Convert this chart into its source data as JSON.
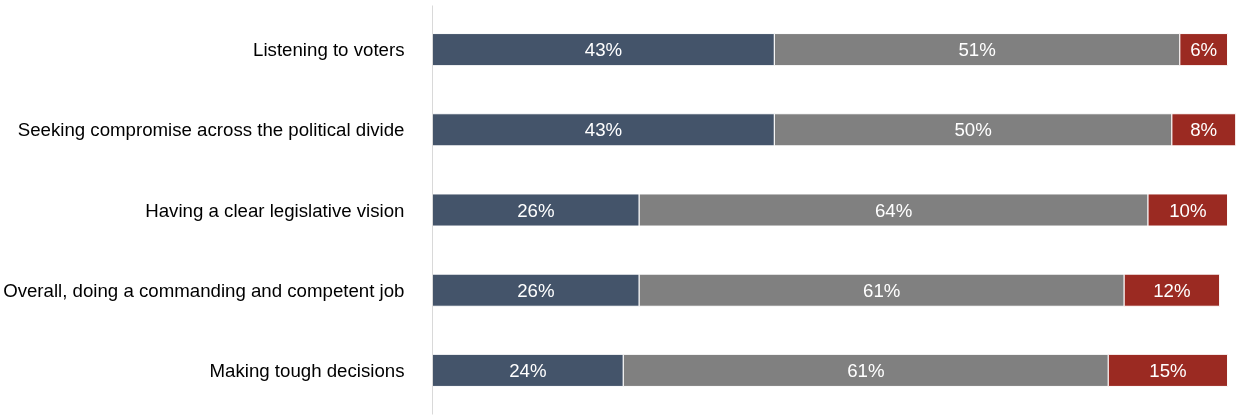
{
  "chart_data": {
    "type": "bar",
    "orientation": "horizontal",
    "stacked": true,
    "categories": [
      "Listening to voters",
      "Seeking compromise across the political divide",
      "Having a clear legislative vision",
      "Overall, doing a commanding and competent job",
      "Making tough decisions"
    ],
    "series": [
      {
        "color": "#44546a",
        "values": [
          43,
          43,
          26,
          26,
          24
        ],
        "value_labels": [
          "43%",
          "43%",
          "26%",
          "26%",
          "24%"
        ]
      },
      {
        "color": "#808080",
        "values": [
          51,
          50,
          64,
          61,
          61
        ],
        "value_labels": [
          "51%",
          "50%",
          "64%",
          "61%",
          "61%"
        ]
      },
      {
        "color": "#9b2a22",
        "values": [
          6,
          8,
          10,
          12,
          15
        ],
        "value_labels": [
          "6%",
          "8%",
          "10%",
          "12%",
          "15%"
        ]
      }
    ],
    "xlim": [
      0,
      101
    ],
    "tick_labels": "y",
    "grid": false
  }
}
